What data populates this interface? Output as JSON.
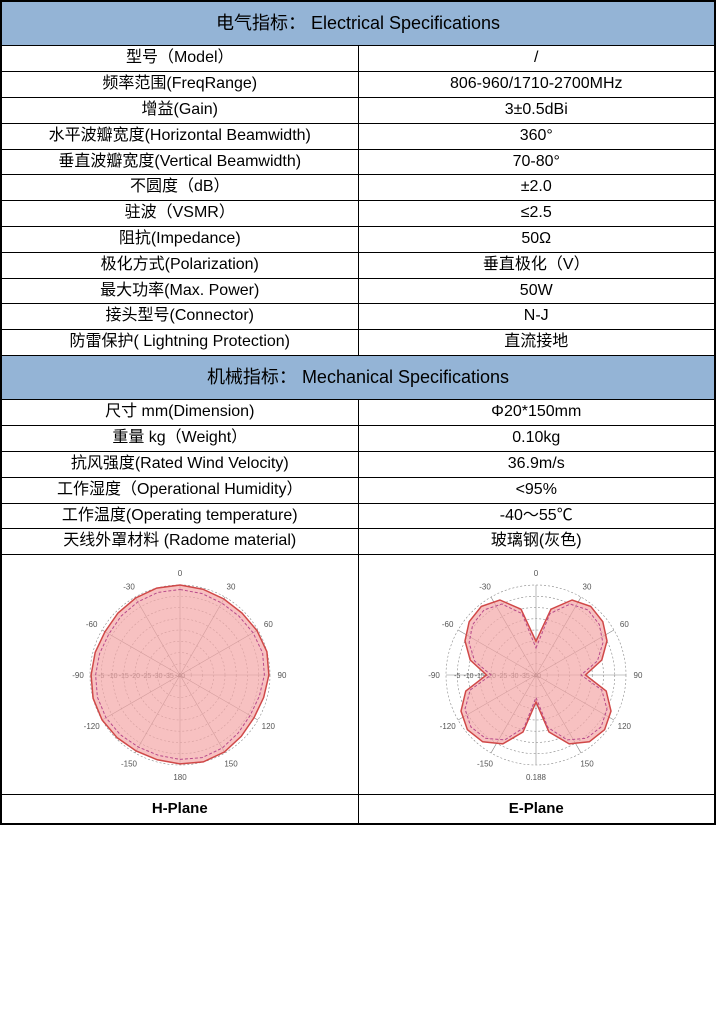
{
  "electrical": {
    "header": "电气指标： Electrical Specifications",
    "rows": [
      {
        "label": "型号（Model）",
        "value": "/"
      },
      {
        "label": "频率范围(FreqRange)",
        "value": "806-960/1710-2700MHz"
      },
      {
        "label": "增益(Gain)",
        "value": "3±0.5dBi"
      },
      {
        "label": "水平波瓣宽度(Horizontal Beamwidth)",
        "value": "360°"
      },
      {
        "label": "垂直波瓣宽度(Vertical Beamwidth)",
        "value": "70-80°"
      },
      {
        "label": "不圆度（dB）",
        "value": "±2.0"
      },
      {
        "label": "驻波（VSMR）",
        "value": "≤2.5"
      },
      {
        "label": "阻抗(Impedance)",
        "value": "50Ω"
      },
      {
        "label": "极化方式(Polarization)",
        "value": "垂直极化（V）"
      },
      {
        "label": "最大功率(Max. Power)",
        "value": "50W"
      },
      {
        "label": "接头型号(Connector)",
        "value": "N-J"
      },
      {
        "label": "防雷保护( Lightning Protection)",
        "value": "直流接地"
      }
    ]
  },
  "mechanical": {
    "header": "机械指标： Mechanical Specifications",
    "rows": [
      {
        "label": "尺寸 mm(Dimension)",
        "value": "Φ20*150mm"
      },
      {
        "label": "重量 kg（Weight）",
        "value": "0.10kg"
      },
      {
        "label": "抗风强度(Rated Wind Velocity)",
        "value": "36.9m/s"
      },
      {
        "label": "工作湿度（Operational Humidity）",
        "value": "<95%"
      },
      {
        "label": "工作温度(Operating temperature)",
        "value": "-40～55℃"
      },
      {
        "label": "天线外罩材料 (Radome material)",
        "value": "玻璃钢(灰色)"
      }
    ]
  },
  "charts": {
    "h_plane": {
      "label": "H-Plane",
      "type": "polar",
      "angle_labels": [
        "0",
        "30",
        "60",
        "90",
        "120",
        "150",
        "180",
        "-150",
        "-120",
        "-90",
        "-60",
        "-30"
      ],
      "db_rings": [
        -5,
        -10,
        -15,
        -20,
        -25,
        -30,
        -35,
        -40
      ],
      "db_range": [
        -40,
        0
      ],
      "fill_color": "#f4a6a6",
      "stroke_color": "#d04848",
      "dash_color": "#b84a8a",
      "grid_color": "#888888",
      "background": "#ffffff",
      "pattern_db": [
        0,
        -0.5,
        -1,
        -1,
        -0.5,
        0,
        -0.5,
        -1.5,
        -2,
        -1.5,
        -0.5,
        0,
        -0.5,
        -1,
        -1,
        -0.5,
        0,
        0,
        -0.5,
        -1,
        -1.5,
        -1,
        -0.5,
        0
      ],
      "dash_db": [
        -2,
        -2.5,
        -3,
        -3,
        -2.5,
        -2,
        -2.5,
        -3.5,
        -4,
        -3.5,
        -2.5,
        -2,
        -2.5,
        -3,
        -3,
        -2.5,
        -2,
        -2,
        -2.5,
        -3,
        -3.5,
        -3,
        -2.5,
        -2
      ]
    },
    "e_plane": {
      "label": "E-Plane",
      "type": "polar",
      "angle_labels": [
        "0",
        "30",
        "60",
        "90",
        "120",
        "150",
        "0.188",
        "-150",
        "-120",
        "-90",
        "-60",
        "-30"
      ],
      "db_rings": [
        -5,
        -10,
        -15,
        -20,
        -25,
        -30,
        -35,
        -40
      ],
      "db_range": [
        -40,
        0
      ],
      "fill_color": "#f4a6a6",
      "stroke_color": "#d04848",
      "dash_color": "#b84a8a",
      "grid_color": "#888888",
      "background": "#ffffff",
      "pattern_db": [
        -25,
        -10,
        -3,
        -1,
        -2,
        -5,
        -10,
        -18,
        -8,
        -3,
        -1,
        -2,
        -6,
        -14,
        -28,
        -14,
        -6,
        -2,
        -1,
        -3,
        -8,
        -18,
        -10,
        -5,
        -2,
        -1,
        -3,
        -10
      ],
      "dash_db": [
        -28,
        -12,
        -5,
        -3,
        -4,
        -7,
        -12,
        -20,
        -10,
        -5,
        -3,
        -4,
        -8,
        -16,
        -30,
        -16,
        -8,
        -4,
        -3,
        -5,
        -10,
        -20,
        -12,
        -7,
        -4,
        -3,
        -5,
        -12
      ]
    }
  },
  "styling": {
    "header_bg": "#94b4d6",
    "border_color": "#000000",
    "body_font": "Microsoft YaHei",
    "cell_fontsize": 16,
    "header_fontsize": 18
  }
}
